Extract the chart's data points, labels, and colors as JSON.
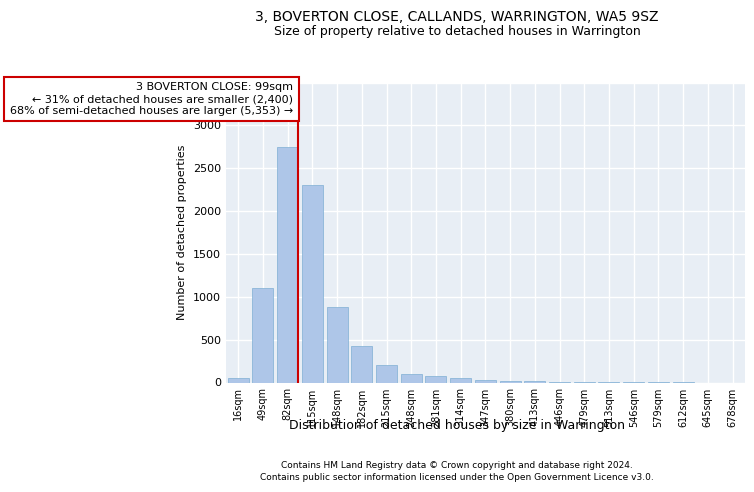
{
  "title1": "3, BOVERTON CLOSE, CALLANDS, WARRINGTON, WA5 9SZ",
  "title2": "Size of property relative to detached houses in Warrington",
  "xlabel": "Distribution of detached houses by size in Warrington",
  "ylabel": "Number of detached properties",
  "footer1": "Contains HM Land Registry data © Crown copyright and database right 2024.",
  "footer2": "Contains public sector information licensed under the Open Government Licence v3.0.",
  "annotation_line1": "3 BOVERTON CLOSE: 99sqm",
  "annotation_line2": "← 31% of detached houses are smaller (2,400)",
  "annotation_line3": "68% of semi-detached houses are larger (5,353) →",
  "bar_labels": [
    "16sqm",
    "49sqm",
    "82sqm",
    "115sqm",
    "148sqm",
    "182sqm",
    "215sqm",
    "248sqm",
    "281sqm",
    "314sqm",
    "347sqm",
    "380sqm",
    "413sqm",
    "446sqm",
    "479sqm",
    "513sqm",
    "546sqm",
    "579sqm",
    "612sqm",
    "645sqm",
    "678sqm"
  ],
  "bar_values": [
    50,
    1100,
    2750,
    2300,
    880,
    430,
    200,
    105,
    75,
    55,
    35,
    20,
    12,
    8,
    5,
    3,
    2,
    1,
    1,
    0,
    0
  ],
  "bar_color": "#aec6e8",
  "bar_edge_color": "#7fafd4",
  "vline_color": "#cc0000",
  "annotation_box_color": "#cc0000",
  "ylim": [
    0,
    3500
  ],
  "yticks": [
    0,
    500,
    1000,
    1500,
    2000,
    2500,
    3000,
    3500
  ],
  "bg_color": "#e8eef5",
  "grid_color": "#ffffff",
  "title1_fontsize": 10,
  "title2_fontsize": 9
}
